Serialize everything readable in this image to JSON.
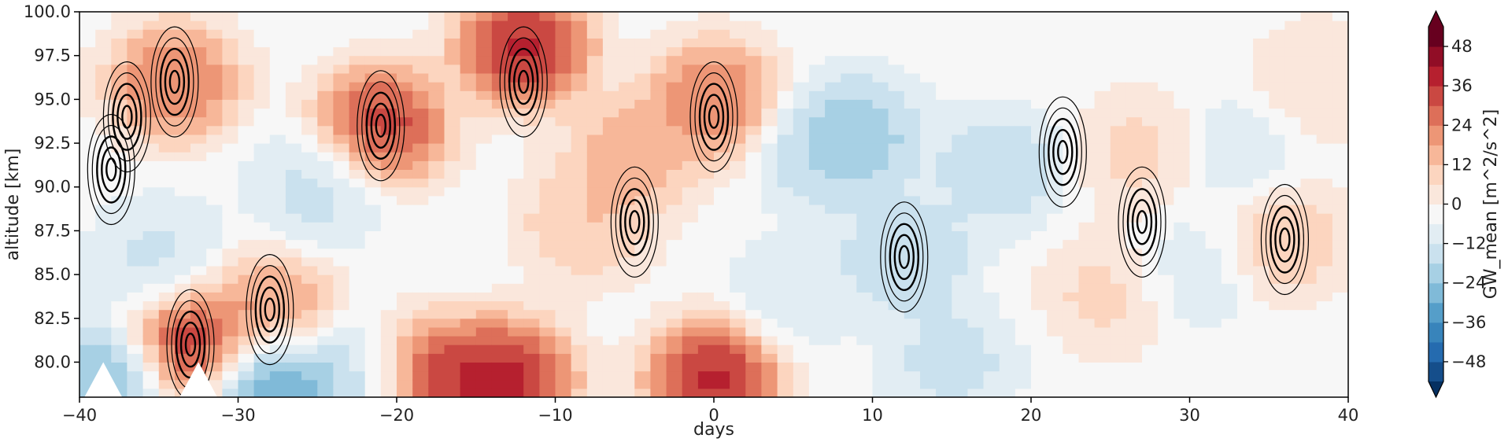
{
  "chart_data": {
    "type": "heatmap",
    "xlabel": "days",
    "ylabel": "altitude [km]",
    "xlim": [
      -40,
      40
    ],
    "ylim": [
      78,
      100
    ],
    "x_ticks": [
      -40,
      -30,
      -20,
      -10,
      0,
      10,
      20,
      30,
      40
    ],
    "x_tick_labels": [
      "−40",
      "−30",
      "−20",
      "−10",
      "0",
      "10",
      "20",
      "30",
      "40"
    ],
    "y_ticks": [
      80.0,
      82.5,
      85.0,
      87.5,
      90.0,
      92.5,
      95.0,
      97.5,
      100.0
    ],
    "y_tick_labels": [
      "80.0",
      "82.5",
      "85.0",
      "87.5",
      "90.0",
      "92.5",
      "95.0",
      "97.5",
      "100.0"
    ],
    "colorbar": {
      "label": "GW_mean [m^2/s^2]",
      "range": [
        -54,
        54
      ],
      "extend": "both",
      "ticks": [
        -48,
        -36,
        -24,
        -12,
        0,
        12,
        24,
        36,
        48
      ],
      "tick_labels": [
        "−48",
        "−36",
        "−24",
        "−12",
        "0",
        "12",
        "24",
        "36",
        "48"
      ],
      "colormap": "RdBu_r",
      "colors": [
        "#053061",
        "#2166ac",
        "#4393c3",
        "#92c5de",
        "#d1e5f0",
        "#f7f7f7",
        "#fddbc7",
        "#f4a582",
        "#d6604d",
        "#b2182b",
        "#67001f"
      ]
    },
    "field_features": [
      {
        "x": -21,
        "y": 93.5,
        "value": 48
      },
      {
        "x": -34,
        "y": 96,
        "value": 36
      },
      {
        "x": -33,
        "y": 81,
        "value": 54
      },
      {
        "x": -12,
        "y": 98,
        "value": 54
      },
      {
        "x": -13,
        "y": 79,
        "value": 54
      },
      {
        "x": -18,
        "y": 79,
        "value": 54
      },
      {
        "x": 0,
        "y": 79,
        "value": 54
      },
      {
        "x": 0,
        "y": 95,
        "value": 36
      },
      {
        "x": 7,
        "y": 92,
        "value": -18
      },
      {
        "x": 9,
        "y": 93,
        "value": -24
      },
      {
        "x": 12,
        "y": 86,
        "value": -20
      },
      {
        "x": 18,
        "y": 91,
        "value": -18
      },
      {
        "x": -28,
        "y": 83,
        "value": 30
      },
      {
        "x": -8,
        "y": 88,
        "value": 20
      },
      {
        "x": -25,
        "y": 90,
        "value": -15
      },
      {
        "x": -35,
        "y": 86,
        "value": -14
      },
      {
        "x": -38,
        "y": 79,
        "value": -30
      },
      {
        "x": -28,
        "y": 79,
        "value": -40
      },
      {
        "x": -22,
        "y": 79,
        "value": -20
      },
      {
        "x": 25,
        "y": 84,
        "value": 15
      },
      {
        "x": 36,
        "y": 87,
        "value": 18
      },
      {
        "x": 27,
        "y": 92,
        "value": 15
      },
      {
        "x": 38,
        "y": 96,
        "value": 12
      },
      {
        "x": 33,
        "y": 92,
        "value": -10
      },
      {
        "x": 15,
        "y": 80,
        "value": -15
      },
      {
        "x": 5,
        "y": 84,
        "value": -10
      },
      {
        "x": -5,
        "y": 92,
        "value": 25
      },
      {
        "x": 30,
        "y": 85,
        "value": -10
      }
    ],
    "contour_centers": [
      {
        "x": -21,
        "y": 93.5
      },
      {
        "x": -34,
        "y": 96
      },
      {
        "x": -33,
        "y": 81
      },
      {
        "x": -37,
        "y": 94
      },
      {
        "x": -38,
        "y": 91
      },
      {
        "x": 12,
        "y": 86
      },
      {
        "x": 0,
        "y": 94
      },
      {
        "x": -12,
        "y": 96
      },
      {
        "x": -28,
        "y": 83
      },
      {
        "x": 27,
        "y": 88
      },
      {
        "x": -5,
        "y": 88
      },
      {
        "x": 22,
        "y": 92
      },
      {
        "x": 36,
        "y": 87
      }
    ],
    "missing_regions": [
      {
        "x": -38.5,
        "y": 78.8
      },
      {
        "x": -32.5,
        "y": 78.8
      }
    ]
  }
}
